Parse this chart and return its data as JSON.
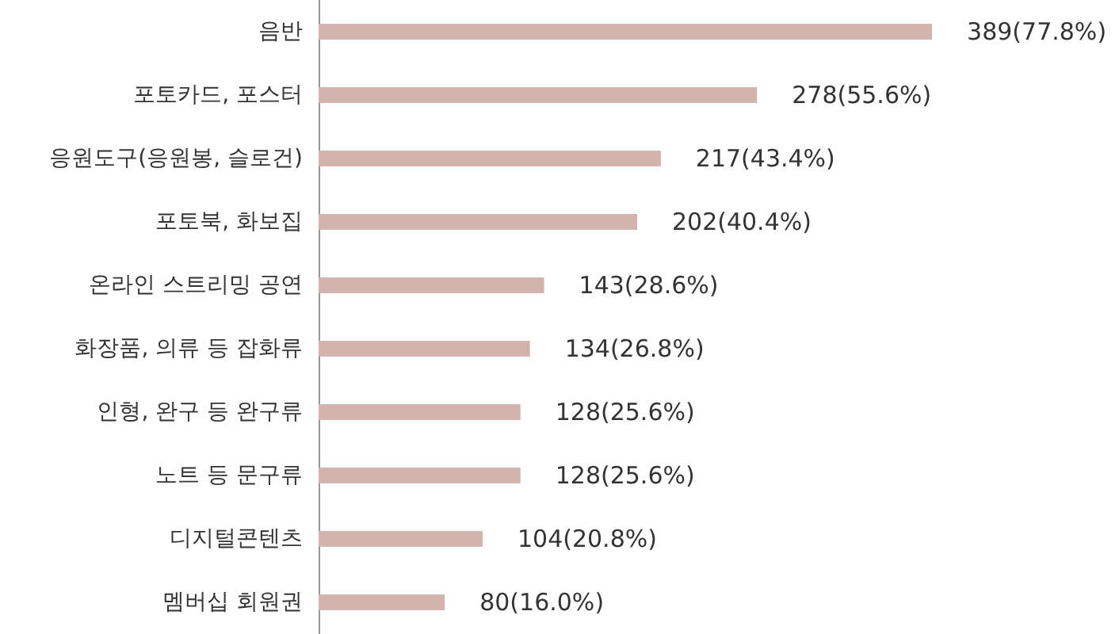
{
  "chart_data": {
    "type": "bar",
    "orientation": "horizontal",
    "categories": [
      "음반",
      "포토카드, 포스터",
      "응원도구(응원봉, 슬로건)",
      "포토북, 화보집",
      "온라인 스트리밍 공연",
      "화장품, 의류 등 잡화류",
      "인형, 완구 등 완구류",
      "노트 등 문구류",
      "디지털콘텐츠",
      "멤버십 회원권"
    ],
    "values": [
      389,
      278,
      217,
      202,
      143,
      134,
      128,
      128,
      104,
      80
    ],
    "value_labels": [
      "389(77.8%)",
      "278(55.6%)",
      "217(43.4%)",
      "202(40.4%)",
      "143(28.6%)",
      "134(26.8%)",
      "128(25.6%)",
      "128(25.6%)",
      "104(20.8%)",
      "80(16.0%)"
    ],
    "color": "#d3b3ae"
  }
}
